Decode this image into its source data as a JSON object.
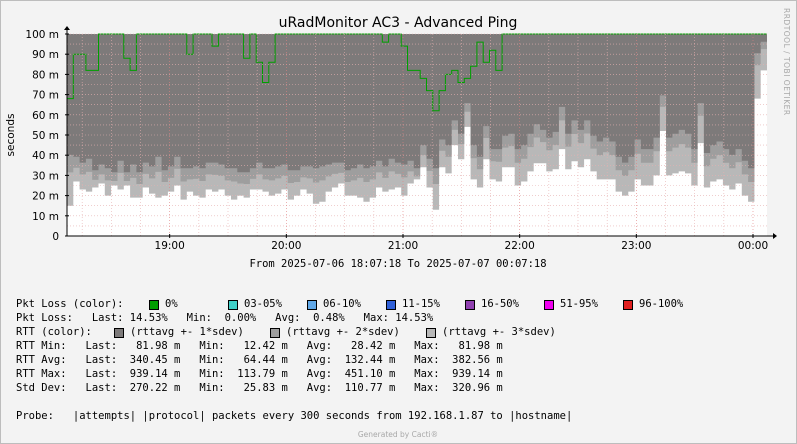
{
  "title": "uRadMonitor AC3 - Advanced Ping",
  "watermark": "RRDTOOL / TOBI OETIKER",
  "date_range": "From 2025-07-06 18:07:18 To 2025-07-07 00:07:18",
  "generated_by": "Generated by Cacti®",
  "chart_data": {
    "type": "area",
    "title": "uRadMonitor AC3 - Advanced Ping",
    "ylabel": "seconds",
    "ylim": [
      0,
      100
    ],
    "yticks": [
      "0",
      "10 m",
      "20 m",
      "30 m",
      "40 m",
      "50 m",
      "60 m",
      "70 m",
      "80 m",
      "90 m",
      "100 m"
    ],
    "xticks": [
      "19:00",
      "20:00",
      "21:00",
      "22:00",
      "23:00",
      "00:00"
    ],
    "xlim_hours": [
      18.12,
      24.12
    ],
    "grid": true,
    "colors": {
      "background": "#f3f3f3",
      "plot_bg": "#ffffff",
      "band_1sdev": "#7d7a7a",
      "band_2sdev": "#9e9e9e",
      "band_3sdev": "#b8b8b8",
      "loss_line": "#00a000",
      "grid": "#e6b0b0"
    },
    "series": [
      {
        "name": "RTT Min",
        "last": 81.98,
        "min": 12.42,
        "avg": 28.42,
        "max": 81.98
      },
      {
        "name": "RTT Avg",
        "last": 340.45,
        "min": 64.44,
        "avg": 132.44,
        "max": 382.56
      },
      {
        "name": "RTT Max",
        "last": 939.14,
        "min": 113.79,
        "avg": 451.1,
        "max": 939.14
      },
      {
        "name": "Std Dev",
        "last": 270.22,
        "min": 25.83,
        "avg": 110.77,
        "max": 320.96
      }
    ],
    "rtt_min_ms": [
      15,
      27,
      23,
      22,
      24,
      26,
      20,
      25,
      23,
      25,
      19,
      19,
      24,
      21,
      19,
      20,
      22,
      25,
      18,
      22,
      20,
      19,
      23,
      22,
      23,
      20,
      18,
      20,
      19,
      23,
      23,
      22,
      20,
      21,
      23,
      18,
      20,
      23,
      21,
      16,
      17,
      22,
      24,
      26,
      20,
      20,
      19,
      17,
      19,
      24,
      22,
      23,
      24,
      20,
      26,
      28,
      34,
      24,
      13,
      34,
      31,
      45,
      38,
      54,
      28,
      24,
      38,
      28,
      27,
      34,
      34,
      25,
      27,
      32,
      36,
      36,
      32,
      33,
      43,
      33,
      37,
      34,
      38,
      32,
      28,
      28,
      28,
      22,
      20,
      22,
      28,
      25,
      25,
      30,
      52,
      30,
      31,
      32,
      31,
      25,
      46,
      24,
      27,
      28,
      25,
      23,
      26,
      20,
      17,
      68,
      82
    ],
    "rtt_avg_ms": [
      37,
      36,
      33,
      35,
      29,
      32,
      30,
      28,
      34,
      28,
      32,
      28,
      33,
      31,
      36,
      29,
      31,
      36,
      30,
      30,
      31,
      30,
      33,
      33,
      32,
      30,
      30,
      28,
      28,
      30,
      33,
      30,
      30,
      31,
      32,
      29,
      29,
      31,
      31,
      30,
      31,
      32,
      33,
      33,
      29,
      30,
      32,
      30,
      31,
      34,
      31,
      35,
      33,
      32,
      34,
      30,
      42,
      35,
      30,
      45,
      42,
      55,
      48,
      64,
      42,
      36,
      52,
      40,
      40,
      47,
      48,
      40,
      42,
      48,
      53,
      50,
      46,
      49,
      62,
      48,
      55,
      50,
      55,
      47,
      44,
      46,
      44,
      36,
      33,
      36,
      45,
      40,
      40,
      46,
      68,
      46,
      48,
      50,
      48,
      40,
      64,
      38,
      42,
      44,
      40,
      37,
      40,
      34,
      30,
      90,
      96
    ],
    "rtt_max_ms": [
      100,
      100,
      100,
      100,
      100,
      100,
      100,
      100,
      100,
      100,
      100,
      100,
      100,
      100,
      100,
      100,
      100,
      100,
      100,
      100,
      100,
      100,
      100,
      100,
      100,
      100,
      100,
      100,
      100,
      100,
      100,
      100,
      100,
      100,
      100,
      100,
      100,
      100,
      100,
      100,
      100,
      100,
      100,
      100,
      100,
      100,
      100,
      100,
      100,
      100,
      100,
      100,
      100,
      100,
      100,
      100,
      100,
      100,
      100,
      100,
      100,
      100,
      100,
      100,
      100,
      100,
      100,
      100,
      100,
      100,
      100,
      100,
      100,
      100,
      100,
      100,
      100,
      100,
      100,
      100,
      100,
      100,
      100,
      100,
      100,
      100,
      100,
      100,
      100,
      100,
      100,
      100,
      100,
      100,
      100,
      100,
      100,
      100,
      100,
      100,
      100,
      100,
      100,
      100,
      100,
      100,
      100,
      100,
      100,
      100,
      100
    ],
    "pkt_loss_ms": [
      68,
      90,
      90,
      82,
      82,
      100,
      100,
      100,
      100,
      88,
      82,
      100,
      100,
      100,
      100,
      100,
      100,
      100,
      100,
      90,
      100,
      100,
      100,
      94,
      100,
      100,
      100,
      100,
      88,
      100,
      86,
      76,
      86,
      100,
      100,
      100,
      100,
      100,
      100,
      100,
      100,
      100,
      100,
      100,
      100,
      100,
      100,
      100,
      100,
      100,
      96,
      100,
      100,
      94,
      82,
      82,
      78,
      72,
      62,
      72,
      80,
      82,
      76,
      78,
      84,
      96,
      86,
      92,
      82,
      100,
      100,
      100,
      100,
      100,
      100,
      100,
      100,
      100,
      100,
      100,
      100,
      100,
      100,
      100,
      100,
      100,
      100,
      100,
      100,
      100,
      100,
      100,
      100,
      100,
      100,
      100,
      100,
      100,
      100,
      100,
      100,
      100,
      100,
      100,
      100,
      100,
      100,
      100,
      100,
      100,
      100
    ]
  },
  "legend": {
    "pkt_loss_label": "Pkt Loss (color):",
    "pkt_loss_items": [
      {
        "label": "0%",
        "color": "#00a000"
      },
      {
        "label": "03-05%",
        "color": "#40d0c8"
      },
      {
        "label": "06-10%",
        "color": "#60a8e8"
      },
      {
        "label": "11-15%",
        "color": "#3060d8"
      },
      {
        "label": "16-50%",
        "color": "#9040b0"
      },
      {
        "label": "51-95%",
        "color": "#f000f0"
      },
      {
        "label": "96-100%",
        "color": "#e02020"
      }
    ],
    "pkt_loss_stats": "Pkt Loss:   Last: 14.53%   Min:  0.00%   Avg:  0.48%   Max: 14.53%",
    "rtt_label": "RTT (color):",
    "rtt_items": [
      {
        "label": "(rttavg +- 1*sdev)",
        "color": "#7d7a7a"
      },
      {
        "label": "(rttavg +- 2*sdev)",
        "color": "#9e9e9e"
      },
      {
        "label": "(rttavg +- 3*sdev)",
        "color": "#b8b8b8"
      }
    ],
    "rtt_min": "RTT Min:   Last:   81.98 m   Min:   12.42 m   Avg:   28.42 m   Max:   81.98 m",
    "rtt_avg": "RTT Avg:   Last:  340.45 m   Min:   64.44 m   Avg:  132.44 m   Max:  382.56 m",
    "rtt_max": "RTT Max:   Last:  939.14 m   Min:  113.79 m   Avg:  451.10 m   Max:  939.14 m",
    "std_dev": "Std Dev:   Last:  270.22 m   Min:   25.83 m   Avg:  110.77 m   Max:  320.96 m",
    "probe": "Probe:   |attempts| |protocol| packets every 300 seconds from 192.168.1.87 to |hostname|"
  }
}
